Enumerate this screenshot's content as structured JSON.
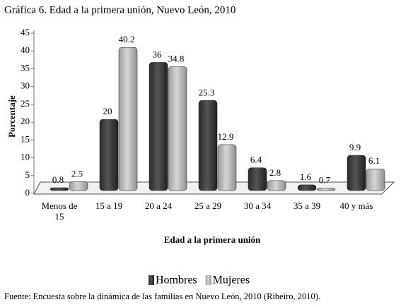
{
  "chart_data": {
    "type": "bar",
    "title": "Gráfica 6. Edad a la primera unión, Nuevo León, 2010",
    "x_label": "Edad a la primera unión",
    "y_label": "Porcentaje",
    "categories": [
      "Menos de 15",
      "15 a 19",
      "20 a 24",
      "25 a 29",
      "30 a 34",
      "35 a 39",
      "40 y más"
    ],
    "series": [
      {
        "name": "Hombres",
        "color": "#3f3f3f",
        "values": [
          0.8,
          20,
          36,
          25.3,
          6.4,
          1.6,
          9.9
        ]
      },
      {
        "name": "Mujeres",
        "color": "#b4b4b4",
        "values": [
          2.5,
          40.2,
          34.8,
          12.9,
          2.8,
          0.7,
          6.1
        ]
      }
    ],
    "ylim": [
      0,
      45
    ],
    "yticks": [
      0,
      5,
      10,
      15,
      20,
      25,
      30,
      35,
      40,
      45
    ],
    "legend": "bottom",
    "source": "Fuente: Encuesta sobre la dinámica de las familias en Nuevo León, 2010 (Ribeiro, 2010)."
  }
}
